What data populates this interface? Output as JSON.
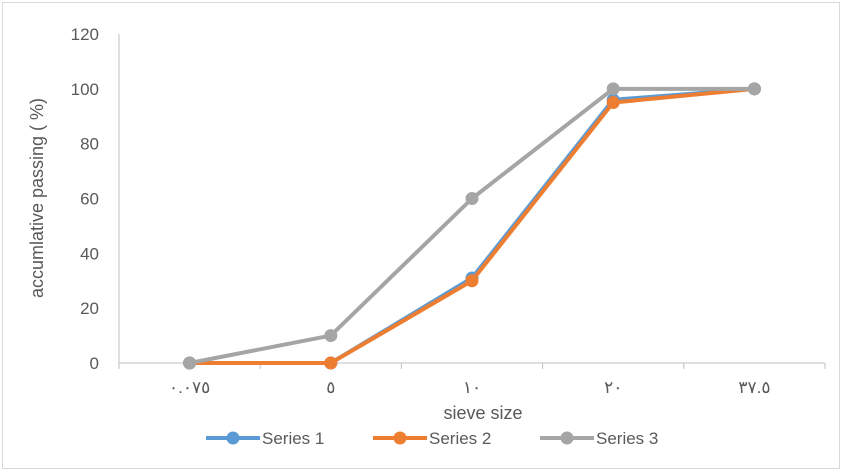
{
  "chart_data": {
    "type": "line",
    "title": "",
    "xlabel": "sieve size",
    "ylabel": "accumlative passing ( %)",
    "categories": [
      "٠.٠٧٥",
      "٥",
      "١٠",
      "٢٠",
      "٣٧.٥"
    ],
    "ylim": [
      0,
      120
    ],
    "yticks": [
      0,
      20,
      40,
      60,
      80,
      100,
      120
    ],
    "grid": false,
    "legend_position": "bottom",
    "series": [
      {
        "name": "Series 1",
        "color": "#5b9bd5",
        "values": [
          0,
          0,
          31,
          96,
          100
        ]
      },
      {
        "name": "Series 2",
        "color": "#ed7d31",
        "values": [
          0,
          0,
          30,
          95,
          100
        ]
      },
      {
        "name": "Series 3",
        "color": "#a5a5a5",
        "values": [
          0,
          10,
          60,
          100,
          100
        ]
      }
    ]
  }
}
